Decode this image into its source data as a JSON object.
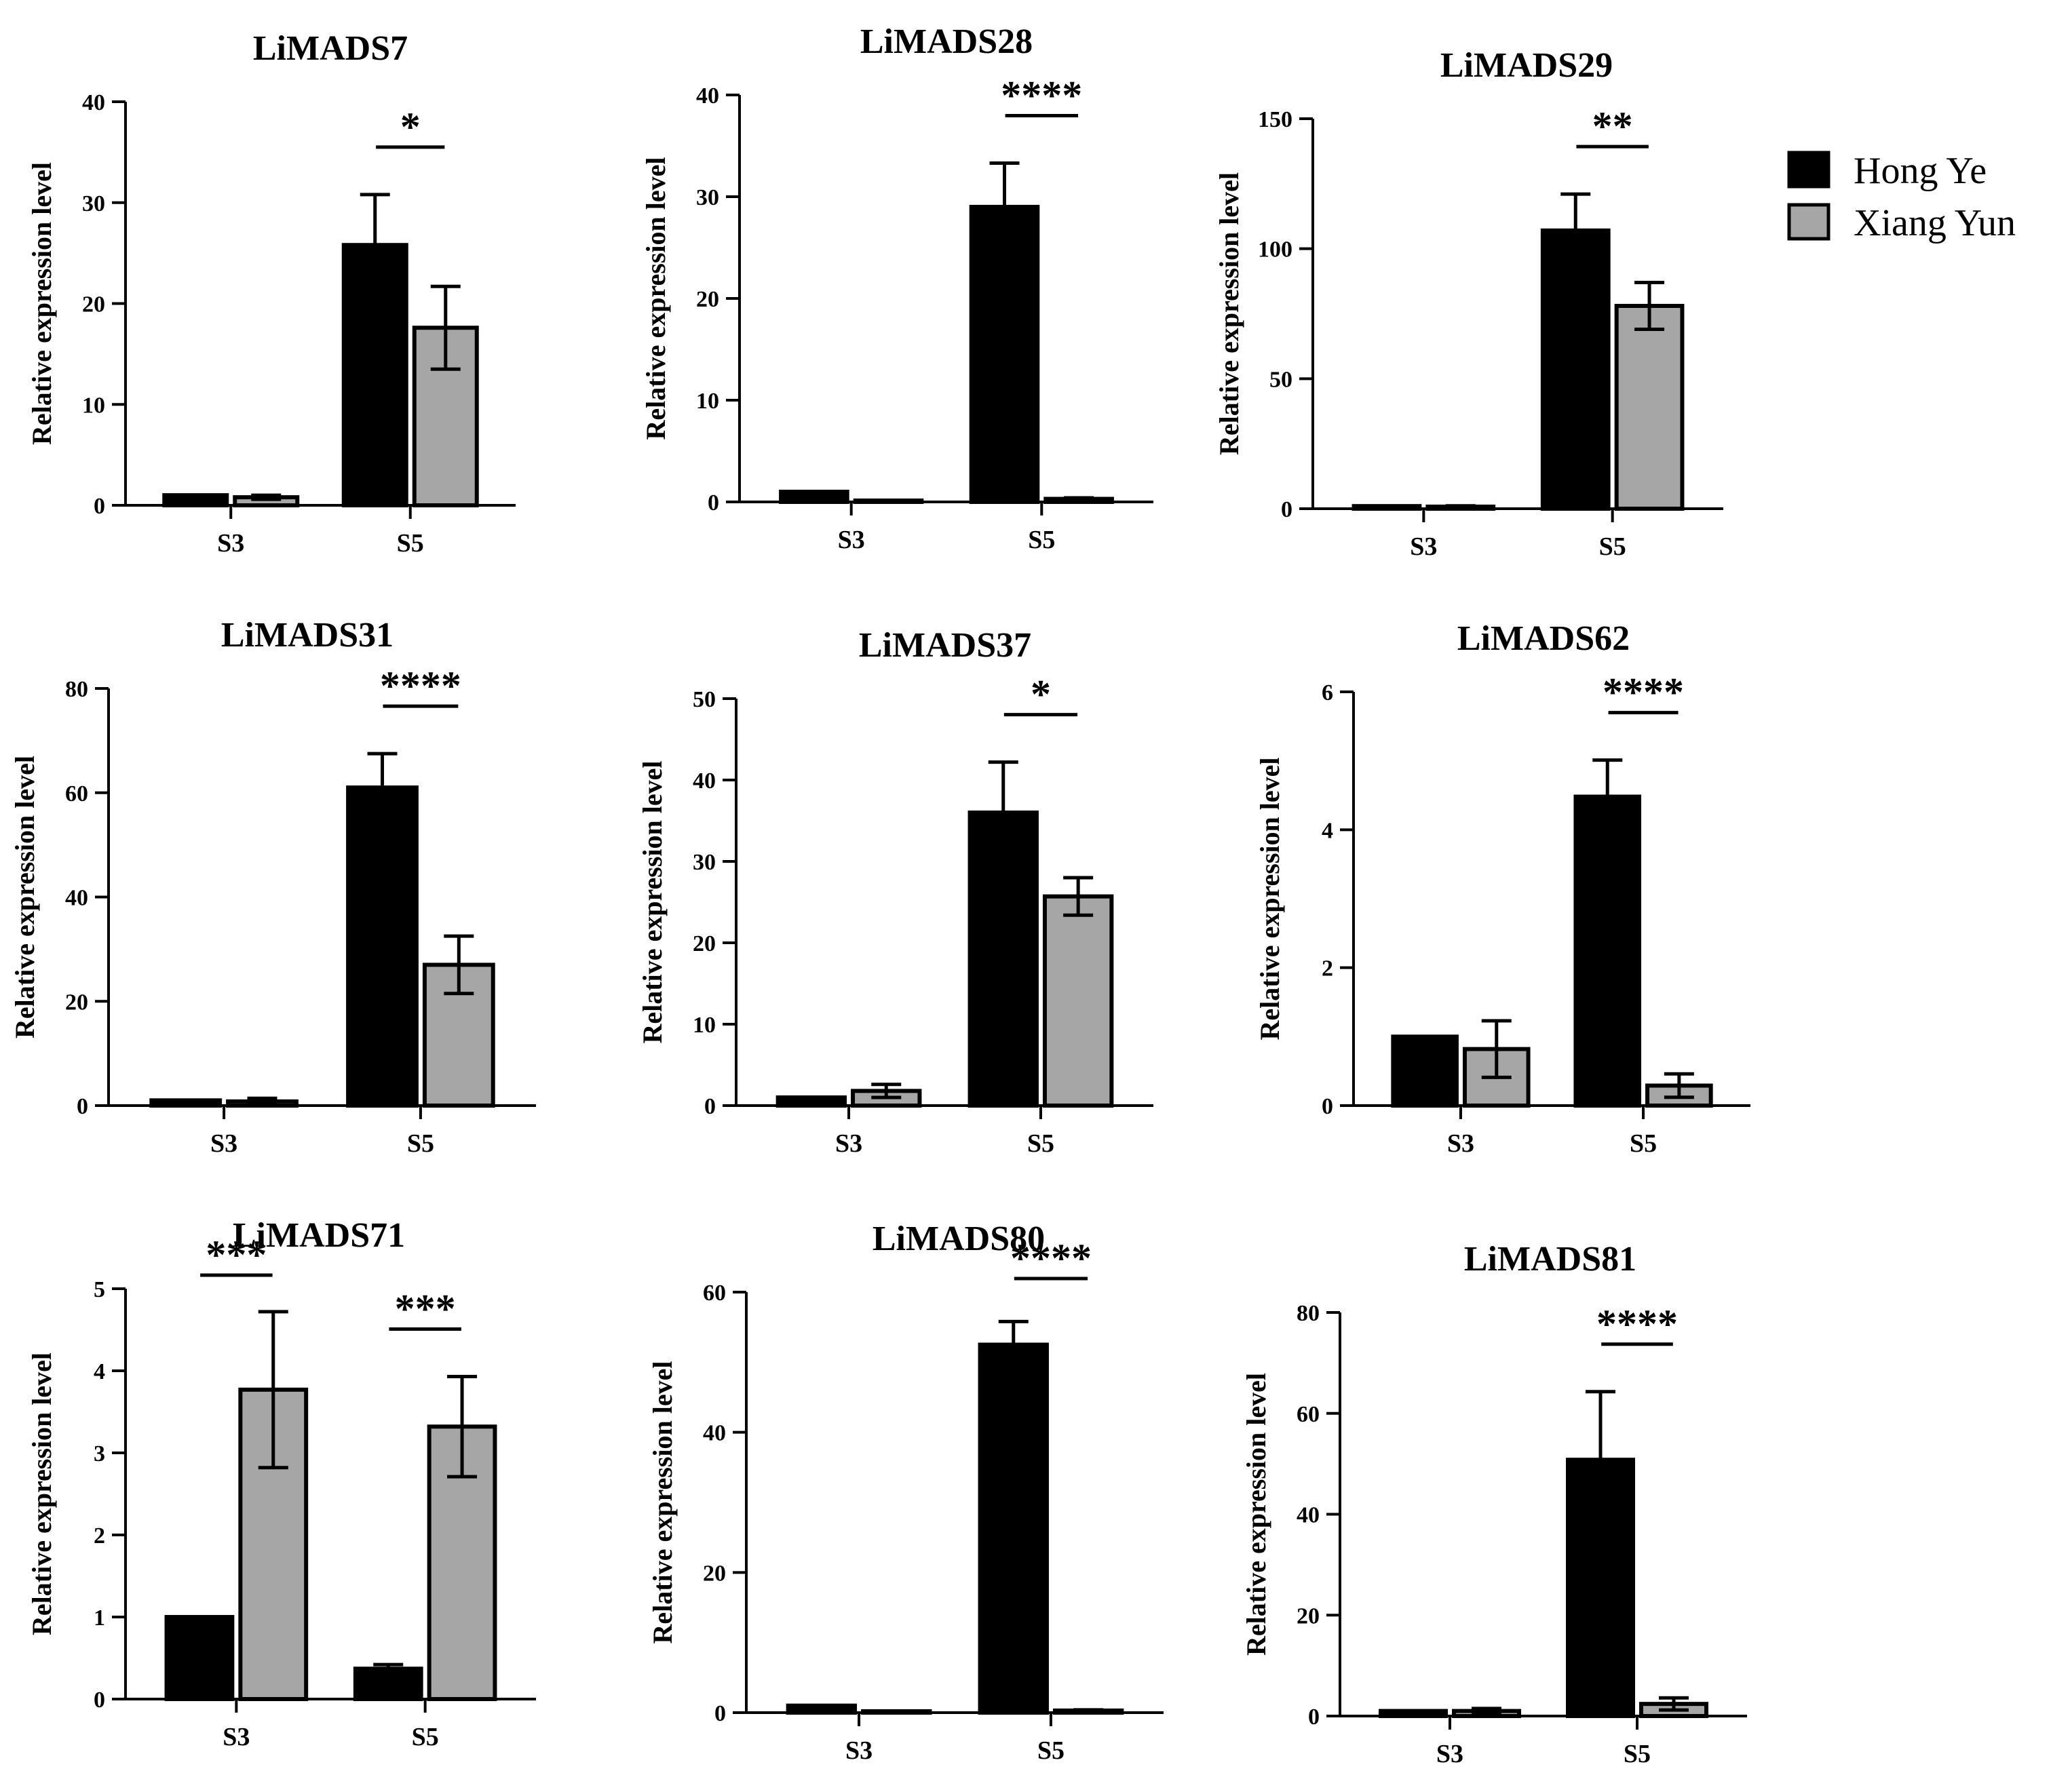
{
  "legend": {
    "items": [
      {
        "name": "Hong Ye",
        "color": "#000000"
      },
      {
        "name": "Xiang Yun",
        "color": "#a6a6a6"
      }
    ]
  },
  "chart_data": [
    {
      "type": "bar",
      "title": "LiMADS7",
      "ylabel": "Relative expression level",
      "categories": [
        "S3",
        "S5"
      ],
      "ylim": [
        0,
        40
      ],
      "yticks": [
        0,
        10,
        20,
        30,
        40
      ],
      "series": [
        {
          "name": "Hong Ye",
          "values": [
            1.0,
            25.8
          ],
          "errors": [
            0,
            5.0
          ]
        },
        {
          "name": "Xiang Yun",
          "values": [
            0.8,
            17.6
          ],
          "errors": [
            0.2,
            4.1
          ]
        }
      ],
      "significance": [
        {
          "category": "S5",
          "label": "*"
        }
      ]
    },
    {
      "type": "bar",
      "title": "LiMADS28",
      "ylabel": "Relative expression level",
      "categories": [
        "S3",
        "S5"
      ],
      "ylim": [
        0,
        40
      ],
      "yticks": [
        0,
        10,
        20,
        30,
        40
      ],
      "series": [
        {
          "name": "Hong Ye",
          "values": [
            1.0,
            29.0
          ],
          "errors": [
            0,
            4.3
          ]
        },
        {
          "name": "Xiang Yun",
          "values": [
            0.1,
            0.3
          ],
          "errors": [
            0,
            0.1
          ]
        }
      ],
      "significance": [
        {
          "category": "S5",
          "label": "****"
        }
      ]
    },
    {
      "type": "bar",
      "title": "LiMADS29",
      "ylabel": "Relative expression level",
      "categories": [
        "S3",
        "S5"
      ],
      "ylim": [
        0,
        150
      ],
      "yticks": [
        0,
        50,
        100,
        150
      ],
      "series": [
        {
          "name": "Hong Ye",
          "values": [
            1.0,
            107
          ],
          "errors": [
            0,
            14
          ]
        },
        {
          "name": "Xiang Yun",
          "values": [
            0.8,
            78
          ],
          "errors": [
            0.3,
            9
          ]
        }
      ],
      "significance": [
        {
          "category": "S5",
          "label": "**"
        }
      ]
    },
    {
      "type": "bar",
      "title": "LiMADS31",
      "ylabel": "Relative expression level",
      "categories": [
        "S3",
        "S5"
      ],
      "ylim": [
        0,
        80
      ],
      "yticks": [
        0,
        20,
        40,
        60,
        80
      ],
      "series": [
        {
          "name": "Hong Ye",
          "values": [
            1.0,
            61
          ],
          "errors": [
            0,
            6.5
          ]
        },
        {
          "name": "Xiang Yun",
          "values": [
            0.8,
            27
          ],
          "errors": [
            0.6,
            5.5
          ]
        }
      ],
      "significance": [
        {
          "category": "S5",
          "label": "****"
        }
      ]
    },
    {
      "type": "bar",
      "title": "LiMADS37",
      "ylabel": "Relative expression level",
      "categories": [
        "S3",
        "S5"
      ],
      "ylim": [
        0,
        50
      ],
      "yticks": [
        0,
        10,
        20,
        30,
        40,
        50
      ],
      "series": [
        {
          "name": "Hong Ye",
          "values": [
            1.0,
            36
          ],
          "errors": [
            0,
            6.2
          ]
        },
        {
          "name": "Xiang Yun",
          "values": [
            1.8,
            25.7
          ],
          "errors": [
            0.8,
            2.3
          ]
        }
      ],
      "significance": [
        {
          "category": "S5",
          "label": "*"
        }
      ]
    },
    {
      "type": "bar",
      "title": "LiMADS62",
      "ylabel": "Relative expression level",
      "categories": [
        "S3",
        "S5"
      ],
      "ylim": [
        0,
        6
      ],
      "yticks": [
        0,
        2,
        4,
        6
      ],
      "series": [
        {
          "name": "Hong Ye",
          "values": [
            1.0,
            4.48
          ],
          "errors": [
            0,
            0.53
          ]
        },
        {
          "name": "Xiang Yun",
          "values": [
            0.82,
            0.29
          ],
          "errors": [
            0.41,
            0.17
          ]
        }
      ],
      "significance": [
        {
          "category": "S5",
          "label": "****"
        }
      ]
    },
    {
      "type": "bar",
      "title": "LiMADS71",
      "ylabel": "Relative expression level",
      "categories": [
        "S3",
        "S5"
      ],
      "ylim": [
        0,
        5
      ],
      "yticks": [
        0,
        1,
        2,
        3,
        4,
        5
      ],
      "series": [
        {
          "name": "Hong Ye",
          "values": [
            1.0,
            0.37
          ],
          "errors": [
            0,
            0.05
          ]
        },
        {
          "name": "Xiang Yun",
          "values": [
            3.77,
            3.32
          ],
          "errors": [
            0.95,
            0.61
          ]
        }
      ],
      "significance": [
        {
          "category": "S3",
          "label": "***"
        },
        {
          "category": "S5",
          "label": "***"
        }
      ]
    },
    {
      "type": "bar",
      "title": "LiMADS80",
      "ylabel": "Relative expression level",
      "categories": [
        "S3",
        "S5"
      ],
      "ylim": [
        0,
        60
      ],
      "yticks": [
        0,
        20,
        40,
        60
      ],
      "series": [
        {
          "name": "Hong Ye",
          "values": [
            1.0,
            52.5
          ],
          "errors": [
            0,
            3.3
          ]
        },
        {
          "name": "Xiang Yun",
          "values": [
            0.2,
            0.3
          ],
          "errors": [
            0,
            0.1
          ]
        }
      ],
      "significance": [
        {
          "category": "S5",
          "label": "****"
        }
      ]
    },
    {
      "type": "bar",
      "title": "LiMADS81",
      "ylabel": "Relative expression level",
      "categories": [
        "S3",
        "S5"
      ],
      "ylim": [
        0,
        80
      ],
      "yticks": [
        0,
        20,
        40,
        60,
        80
      ],
      "series": [
        {
          "name": "Hong Ye",
          "values": [
            1.0,
            50.8
          ],
          "errors": [
            0,
            13.5
          ]
        },
        {
          "name": "Xiang Yun",
          "values": [
            1.0,
            2.4
          ],
          "errors": [
            0.5,
            1.2
          ]
        }
      ],
      "significance": [
        {
          "category": "S5",
          "label": "****"
        }
      ]
    }
  ]
}
